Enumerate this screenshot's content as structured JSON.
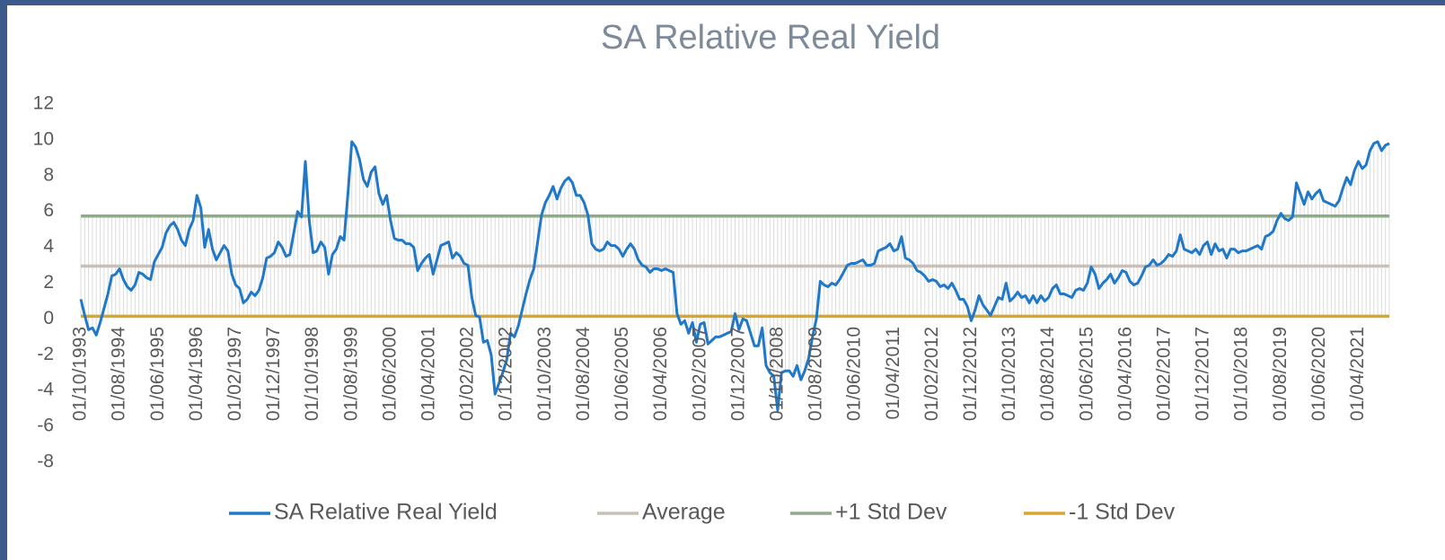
{
  "chart_data": {
    "type": "line",
    "title": "SA Relative Real Yield",
    "categories": [
      "01/10/1993",
      null,
      null,
      null,
      null,
      null,
      null,
      null,
      null,
      null,
      "01/08/1994",
      null,
      null,
      null,
      null,
      null,
      null,
      null,
      null,
      null,
      "01/06/1995",
      null,
      null,
      null,
      null,
      null,
      null,
      null,
      null,
      null,
      "01/04/1996",
      null,
      null,
      null,
      null,
      null,
      null,
      null,
      null,
      null,
      "01/02/1997",
      null,
      null,
      null,
      null,
      null,
      null,
      null,
      null,
      null,
      "01/12/1997",
      null,
      null,
      null,
      null,
      null,
      null,
      null,
      null,
      null,
      "01/10/1998",
      null,
      null,
      null,
      null,
      null,
      null,
      null,
      null,
      null,
      "01/08/1999",
      null,
      null,
      null,
      null,
      null,
      null,
      null,
      null,
      null,
      "01/06/2000",
      null,
      null,
      null,
      null,
      null,
      null,
      null,
      null,
      null,
      "01/04/2001",
      null,
      null,
      null,
      null,
      null,
      null,
      null,
      null,
      null,
      "01/02/2002",
      null,
      null,
      null,
      null,
      null,
      null,
      null,
      null,
      null,
      "01/12/2002",
      null,
      null,
      null,
      null,
      null,
      null,
      null,
      null,
      null,
      "01/10/2003",
      null,
      null,
      null,
      null,
      null,
      null,
      null,
      null,
      null,
      "01/08/2004",
      null,
      null,
      null,
      null,
      null,
      null,
      null,
      null,
      null,
      "01/06/2005",
      null,
      null,
      null,
      null,
      null,
      null,
      null,
      null,
      null,
      "01/04/2006",
      null,
      null,
      null,
      null,
      null,
      null,
      null,
      null,
      null,
      "01/02/2007",
      null,
      null,
      null,
      null,
      null,
      null,
      null,
      null,
      null,
      "01/12/2007",
      null,
      null,
      null,
      null,
      null,
      null,
      null,
      null,
      null,
      "01/10/2008",
      null,
      null,
      null,
      null,
      null,
      null,
      null,
      null,
      null,
      "01/08/2009",
      null,
      null,
      null,
      null,
      null,
      null,
      null,
      null,
      null,
      "01/06/2010",
      null,
      null,
      null,
      null,
      null,
      null,
      null,
      null,
      null,
      "01/04/2011",
      null,
      null,
      null,
      null,
      null,
      null,
      null,
      null,
      null,
      "01/02/2012",
      null,
      null,
      null,
      null,
      null,
      null,
      null,
      null,
      null,
      "01/12/2012",
      null,
      null,
      null,
      null,
      null,
      null,
      null,
      null,
      null,
      "01/10/2013",
      null,
      null,
      null,
      null,
      null,
      null,
      null,
      null,
      null,
      "01/08/2014",
      null,
      null,
      null,
      null,
      null,
      null,
      null,
      null,
      null,
      "01/06/2015",
      null,
      null,
      null,
      null,
      null,
      null,
      null,
      null,
      null,
      "01/04/2016",
      null,
      null,
      null,
      null,
      null,
      null,
      null,
      null,
      null,
      "01/02/2017",
      null,
      null,
      null,
      null,
      null,
      null,
      null,
      null,
      null,
      "01/12/2017",
      null,
      null,
      null,
      null,
      null,
      null,
      null,
      null,
      null,
      "01/10/2018",
      null,
      null,
      null,
      null,
      null,
      null,
      null,
      null,
      null,
      "01/08/2019",
      null,
      null,
      null,
      null,
      null,
      null,
      null,
      null,
      null,
      "01/06/2020",
      null,
      null,
      null,
      null,
      null,
      null,
      null,
      null,
      null,
      "01/04/2021",
      null,
      null,
      null,
      null,
      null,
      null,
      null,
      null
    ],
    "series": [
      {
        "name": "SA Relative Real Yield",
        "color": "#1f78c8",
        "values": [
          1.1,
          0.2,
          -0.6,
          -0.5,
          -0.9,
          -0.2,
          0.6,
          1.4,
          2.4,
          2.5,
          2.8,
          2.2,
          1.8,
          1.6,
          1.9,
          2.6,
          2.5,
          2.3,
          2.2,
          3.2,
          3.6,
          4.0,
          4.8,
          5.2,
          5.4,
          5.0,
          4.4,
          4.1,
          5.0,
          5.5,
          6.9,
          6.2,
          4.0,
          5.0,
          3.9,
          3.3,
          3.7,
          4.1,
          3.8,
          2.5,
          1.9,
          1.7,
          0.9,
          1.1,
          1.5,
          1.3,
          1.6,
          2.3,
          3.4,
          3.5,
          3.7,
          4.3,
          4.0,
          3.5,
          3.6,
          4.8,
          6.0,
          5.7,
          8.8,
          5.5,
          3.7,
          3.8,
          4.3,
          4.0,
          2.5,
          3.6,
          3.9,
          4.6,
          4.4,
          7.0,
          9.9,
          9.6,
          8.9,
          7.8,
          7.4,
          8.2,
          8.5,
          7.0,
          6.4,
          6.9,
          5.5,
          4.5,
          4.4,
          4.4,
          4.2,
          4.2,
          4.0,
          2.7,
          3.1,
          3.4,
          3.6,
          2.5,
          3.3,
          4.1,
          4.2,
          4.3,
          3.4,
          3.7,
          3.5,
          3.1,
          3.0,
          1.2,
          0.2,
          0.1,
          -1.3,
          -1.2,
          -2.0,
          -4.2,
          -3.6,
          -3.0,
          -2.3,
          -0.8,
          -1.0,
          -0.4,
          0.5,
          1.4,
          2.2,
          2.8,
          4.3,
          5.8,
          6.5,
          6.9,
          7.4,
          6.7,
          7.3,
          7.7,
          7.9,
          7.6,
          6.9,
          6.9,
          6.5,
          5.8,
          4.2,
          3.9,
          3.8,
          3.9,
          4.3,
          4.1,
          4.1,
          3.9,
          3.5,
          3.9,
          4.2,
          3.9,
          3.3,
          3.0,
          2.9,
          2.6,
          2.8,
          2.8,
          2.7,
          2.8,
          2.7,
          2.6,
          0.3,
          -0.3,
          -0.1,
          -0.8,
          -0.2,
          -1.3,
          -0.3,
          -0.2,
          -1.4,
          -1.2,
          -1.0,
          -1.0,
          -0.9,
          -0.8,
          -0.7,
          0.3,
          -0.6,
          0.0,
          -0.1,
          -0.8,
          -1.5,
          -1.5,
          -0.5,
          -2.6,
          -3.0,
          -3.2,
          -5.1,
          -3.0,
          -2.9,
          -2.9,
          -3.2,
          -2.6,
          -3.4,
          -2.9,
          -2.2,
          -1.0,
          0.0,
          2.1,
          1.9,
          1.8,
          2.0,
          1.9,
          2.2,
          2.6,
          3.0,
          3.1,
          3.1,
          3.2,
          3.3,
          3.0,
          3.0,
          3.1,
          3.8,
          3.9,
          4.0,
          4.2,
          3.8,
          3.9,
          4.6,
          3.4,
          3.3,
          3.1,
          2.7,
          2.6,
          2.4,
          2.1,
          2.2,
          2.1,
          1.8,
          1.9,
          1.7,
          2.0,
          1.6,
          1.1,
          1.1,
          0.7,
          -0.1,
          0.5,
          1.3,
          0.8,
          0.5,
          0.2,
          0.7,
          1.2,
          1.1,
          2.0,
          1.0,
          1.2,
          1.5,
          1.2,
          1.3,
          0.9,
          1.3,
          0.9,
          1.3,
          1.0,
          1.2,
          1.7,
          1.9,
          1.4,
          1.4,
          1.3,
          1.2,
          1.6,
          1.7,
          1.6,
          2.0,
          2.9,
          2.5,
          1.7,
          2.0,
          2.2,
          2.5,
          2.0,
          2.3,
          2.7,
          2.6,
          2.1,
          1.9,
          2.0,
          2.4,
          2.9,
          3.0,
          3.3,
          3.0,
          3.1,
          3.3,
          3.6,
          3.5,
          3.8,
          4.7,
          3.9,
          3.8,
          3.7,
          3.9,
          3.6,
          4.1,
          4.3,
          3.6,
          4.2,
          3.8,
          3.9,
          3.4,
          3.9,
          3.9,
          3.7,
          3.8,
          3.8,
          3.9,
          4.0,
          4.1,
          3.9,
          4.6,
          4.7,
          4.9,
          5.5,
          5.9,
          5.6,
          5.5,
          5.7,
          7.6,
          7.0,
          6.4,
          7.1,
          6.7,
          7.0,
          7.2,
          6.6,
          6.5,
          6.4,
          6.3,
          6.6,
          7.3,
          7.9,
          7.5,
          8.3,
          8.8,
          8.4,
          8.6,
          9.4,
          9.8,
          9.9,
          9.4,
          9.7,
          9.8
        ]
      },
      {
        "name": "Average",
        "color": "#c9bfb5",
        "value": 2.95
      },
      {
        "name": "+1 Std Dev",
        "color": "#8fac88",
        "value": 5.75
      },
      {
        "name": "-1 Std Dev",
        "color": "#d8a52f",
        "value": 0.15
      }
    ],
    "ylim": [
      -8,
      12
    ],
    "yticks": [
      -8,
      -6,
      -4,
      -2,
      0,
      2,
      4,
      6,
      8,
      10,
      12
    ],
    "legend": "bottom"
  }
}
